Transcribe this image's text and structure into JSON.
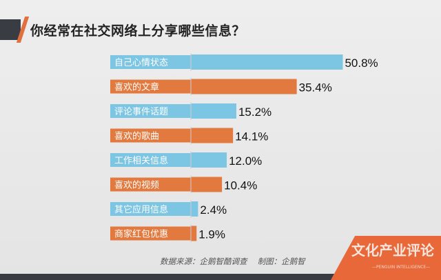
{
  "chart_data": {
    "type": "bar",
    "orientation": "horizontal",
    "title": "你经常在社交网络上分享哪些信息？",
    "categories": [
      "自己心情状态",
      "喜欢的文章",
      "评论事件话题",
      "喜欢的歌曲",
      "工作相关信息",
      "喜欢的视频",
      "其它应用信息",
      "商家红包优惠"
    ],
    "values": [
      50.8,
      35.4,
      15.2,
      14.1,
      12.0,
      10.4,
      2.4,
      1.9
    ],
    "data_labels": [
      "50.8%",
      "35.4%",
      "15.2%",
      "14.1%",
      "12.0%",
      "10.4%",
      "2.4%",
      "1.9%"
    ],
    "unit": "%",
    "colors": [
      "#7cc5e3",
      "#e27a3f"
    ],
    "grid": false,
    "legend": "none"
  },
  "footer": {
    "source": "数据来源：企鹅智酷调查　 制图：企鹅智"
  },
  "watermark": {
    "text": "文化产业评论",
    "sub": "PENGUIN INTELLIGENCE"
  }
}
